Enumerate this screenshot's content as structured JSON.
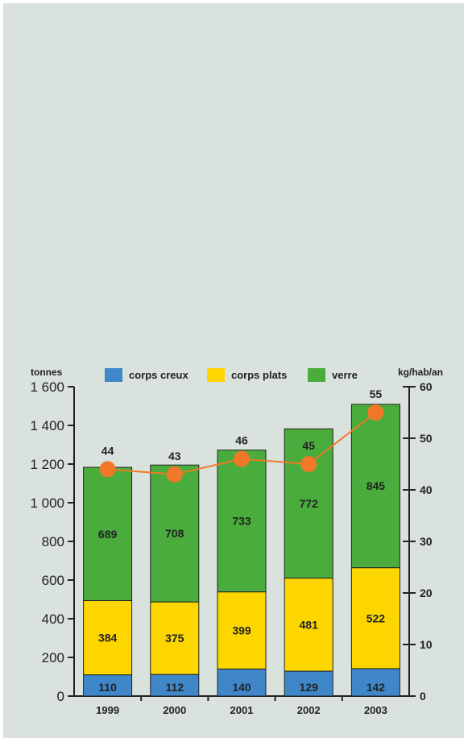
{
  "chart_data": {
    "type": "bar",
    "stacked": true,
    "categories": [
      "1999",
      "2000",
      "2001",
      "2002",
      "2003"
    ],
    "series": [
      {
        "name": "corps creux",
        "color": "#3f87c8",
        "values": [
          110,
          112,
          140,
          129,
          142
        ]
      },
      {
        "name": "corps plats",
        "color": "#fdd600",
        "values": [
          384,
          375,
          399,
          481,
          522
        ]
      },
      {
        "name": "verre",
        "color": "#4aac3c",
        "values": [
          689,
          708,
          733,
          772,
          845
        ]
      }
    ],
    "line": {
      "values": [
        44,
        43,
        46,
        45,
        55
      ],
      "color": "#f07828",
      "axis": "right"
    },
    "y_left": {
      "label": "tonnes",
      "ylim": [
        0,
        1600
      ],
      "ticks": [
        "0",
        "200",
        "400",
        "600",
        "800",
        "1 000",
        "1 200",
        "1 400",
        "1 600"
      ]
    },
    "y_right": {
      "label": "kg/hab/an",
      "ylim": [
        0,
        60
      ],
      "ticks": [
        "0",
        "10",
        "20",
        "30",
        "40",
        "50",
        "60"
      ]
    },
    "legend_position": "top",
    "grid": false,
    "title": "",
    "xlabel": ""
  }
}
